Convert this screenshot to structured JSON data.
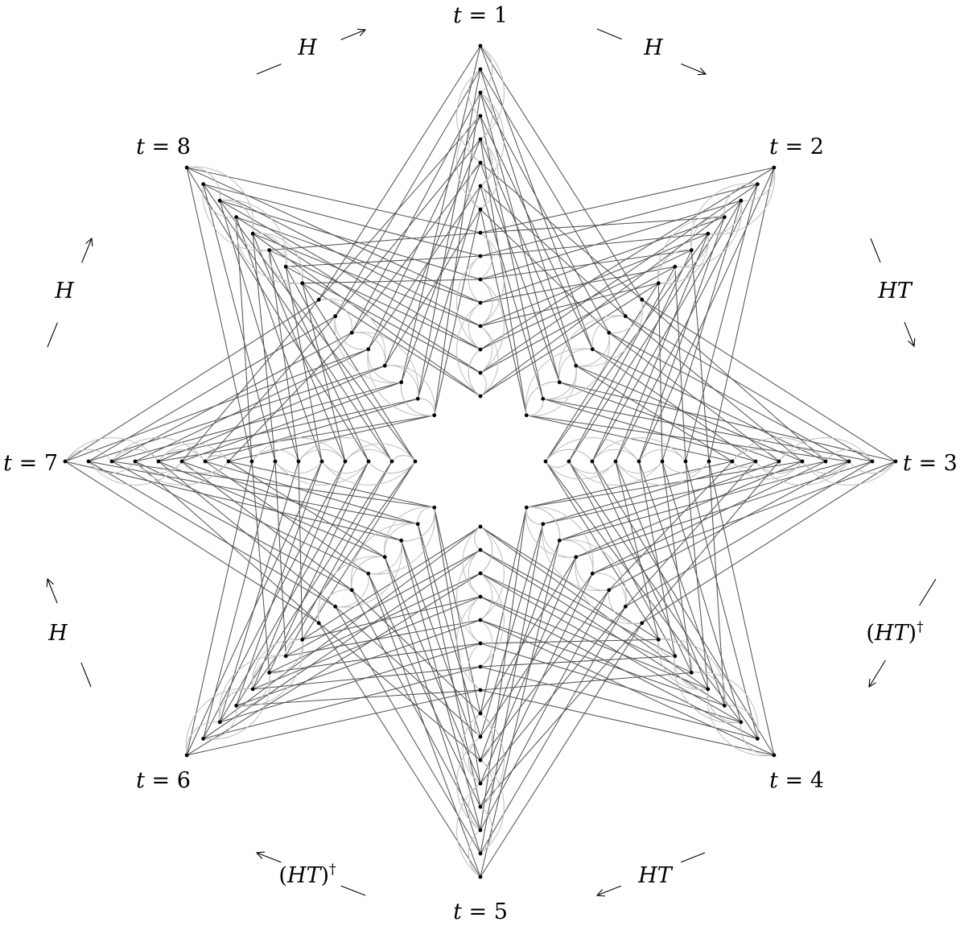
{
  "diagram": {
    "layers": 8,
    "nodes_per_layer": 8,
    "colors": {
      "edge": "#555555",
      "arc": "#bdbdbd",
      "node": "#000000"
    },
    "time_labels": [
      {
        "var": "t",
        "eq": " = ",
        "num": "1"
      },
      {
        "var": "t",
        "eq": " = ",
        "num": "2"
      },
      {
        "var": "t",
        "eq": " = ",
        "num": "3"
      },
      {
        "var": "t",
        "eq": " = ",
        "num": "4"
      },
      {
        "var": "t",
        "eq": " = ",
        "num": "5"
      },
      {
        "var": "t",
        "eq": " = ",
        "num": "6"
      },
      {
        "var": "t",
        "eq": " = ",
        "num": "7"
      },
      {
        "var": "t",
        "eq": " = ",
        "num": "8"
      }
    ],
    "transitions": [
      {
        "from": "1",
        "to": "2",
        "text": "H",
        "dagger": ""
      },
      {
        "from": "2",
        "to": "3",
        "text": "H",
        "dagger": ""
      },
      {
        "from": "3",
        "to": "4",
        "text": "HT",
        "dagger": ""
      },
      {
        "from": "4",
        "to": "5",
        "text": "(HT)",
        "dagger": "†"
      },
      {
        "from": "5",
        "to": "6",
        "text": "HT",
        "dagger": ""
      },
      {
        "from": "6",
        "to": "7",
        "text": "(HT)",
        "dagger": "†"
      },
      {
        "from": "7",
        "to": "8",
        "text": "H",
        "dagger": ""
      },
      {
        "from": "8",
        "to": "1",
        "text": "H",
        "dagger": ""
      }
    ]
  }
}
